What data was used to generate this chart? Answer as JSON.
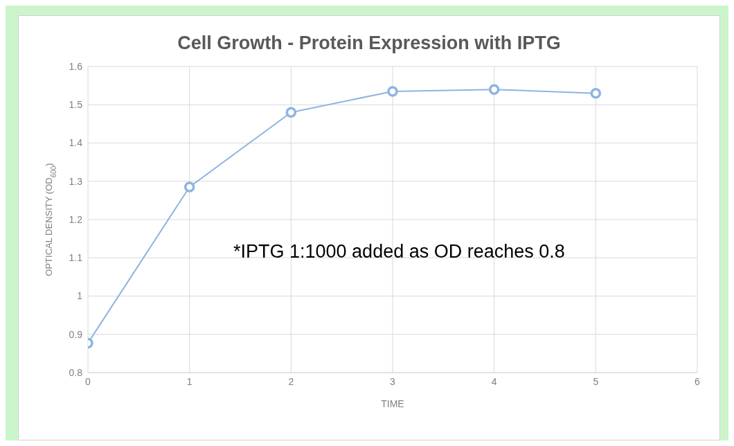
{
  "chart_data": {
    "type": "line",
    "title": "Cell Growth - Protein Expression with IPTG",
    "xlabel": "TIME",
    "ylabel": "OPTICAL DENSITY (OD$_{600}$)",
    "x": [
      0,
      1,
      2,
      3,
      4,
      5
    ],
    "series": [
      {
        "color": "#8db4e2",
        "values": [
          0.877,
          1.285,
          1.48,
          1.535,
          1.54,
          1.53
        ]
      }
    ],
    "xlim": [
      0,
      6
    ],
    "xticks": [
      0,
      1,
      2,
      3,
      4,
      5,
      6
    ],
    "ylim": [
      0.8,
      1.6
    ],
    "yticks": [
      0.8,
      0.9,
      1,
      1.1,
      1.2,
      1.3,
      1.4,
      1.5,
      1.6
    ],
    "grid": true,
    "marker": "circle",
    "line_style": "solid",
    "annotations": [
      "*IPTG 1:1000 added as OD reaches 0.8"
    ]
  }
}
